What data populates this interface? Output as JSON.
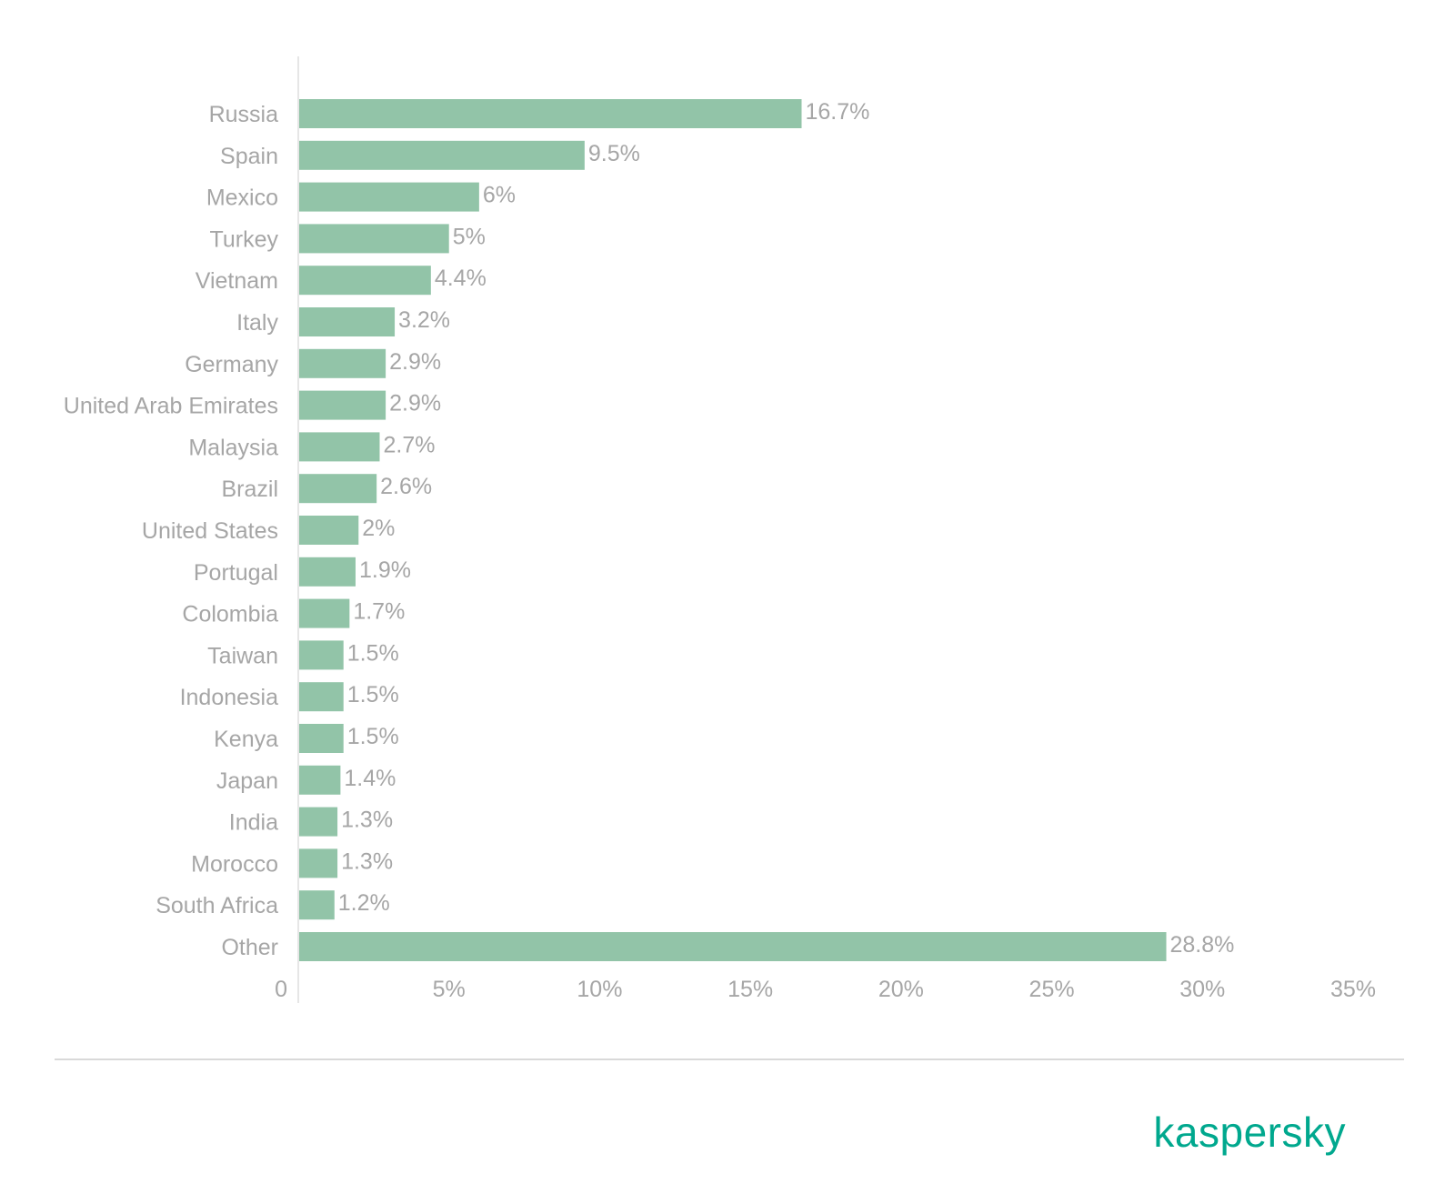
{
  "chart_data": {
    "type": "bar",
    "orientation": "horizontal",
    "categories": [
      "Russia",
      "Spain",
      "Mexico",
      "Turkey",
      "Vietnam",
      "Italy",
      "Germany",
      "United Arab Emirates",
      "Malaysia",
      "Brazil",
      "United States",
      "Portugal",
      "Colombia",
      "Taiwan",
      "Indonesia",
      "Kenya",
      "Japan",
      "India",
      "Morocco",
      "South Africa",
      "Other"
    ],
    "values": [
      16.7,
      9.5,
      6,
      5,
      4.4,
      3.2,
      2.9,
      2.9,
      2.7,
      2.6,
      2,
      1.9,
      1.7,
      1.5,
      1.5,
      1.5,
      1.4,
      1.3,
      1.3,
      1.2,
      28.8
    ],
    "value_labels": [
      "16.7%",
      "9.5%",
      "6%",
      "5%",
      "4.4%",
      "3.2%",
      "2.9%",
      "2.9%",
      "2.7%",
      "2.6%",
      "2%",
      "1.9%",
      "1.7%",
      "1.5%",
      "1.5%",
      "1.5%",
      "1.4%",
      "1.3%",
      "1.3%",
      "1.2%",
      "28.8%"
    ],
    "xlim": [
      0,
      35
    ],
    "xticks": [
      0,
      5,
      10,
      15,
      20,
      25,
      30,
      35
    ],
    "xtick_labels": [
      "0",
      "5%",
      "10%",
      "15%",
      "20%",
      "25%",
      "30%",
      "35%"
    ],
    "title": "",
    "xlabel": "",
    "ylabel": "",
    "grid": false,
    "bar_color": "#92c4a8",
    "text_color": "#a6a6a6",
    "axis_color": "#e6e6e6"
  },
  "brand": {
    "name": "kaspersky",
    "color": "#00a88e"
  }
}
